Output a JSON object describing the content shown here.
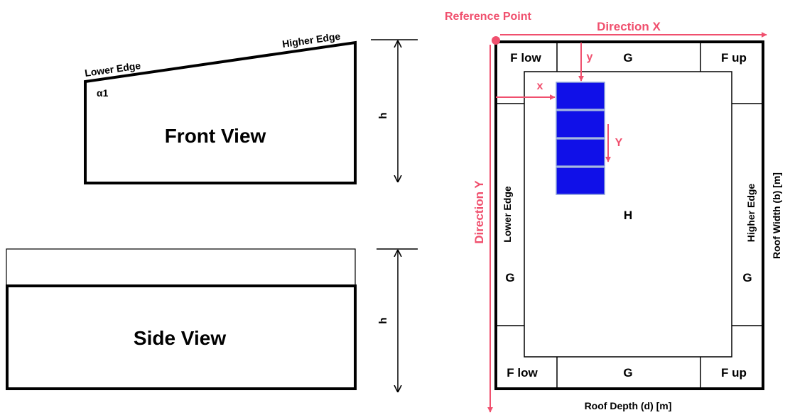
{
  "front_view": {
    "title": "Front View",
    "lower_edge": "Lower Edge",
    "higher_edge": "Higher Edge",
    "angle": "α1",
    "height": "h"
  },
  "side_view": {
    "title": "Side View",
    "height": "h"
  },
  "roof_plan": {
    "reference_point": "Reference Point",
    "direction_x": "Direction X",
    "direction_y": "Direction Y",
    "offset_x": "x",
    "offset_y": "y",
    "panel_spacing": "Y",
    "zone_f_low": "F low",
    "zone_f_up": "F up",
    "zone_g": "G",
    "zone_h": "H",
    "lower_edge": "Lower Edge",
    "higher_edge": "Higher Edge",
    "depth_label": "Roof Depth (d) [m]",
    "width_label": "Roof Width (b) [m]",
    "panel_count": 4
  },
  "colors": {
    "accent": "#f0506e",
    "panel": "#1010e8",
    "panel_stroke": "#8aa0d8",
    "line": "#000000"
  }
}
